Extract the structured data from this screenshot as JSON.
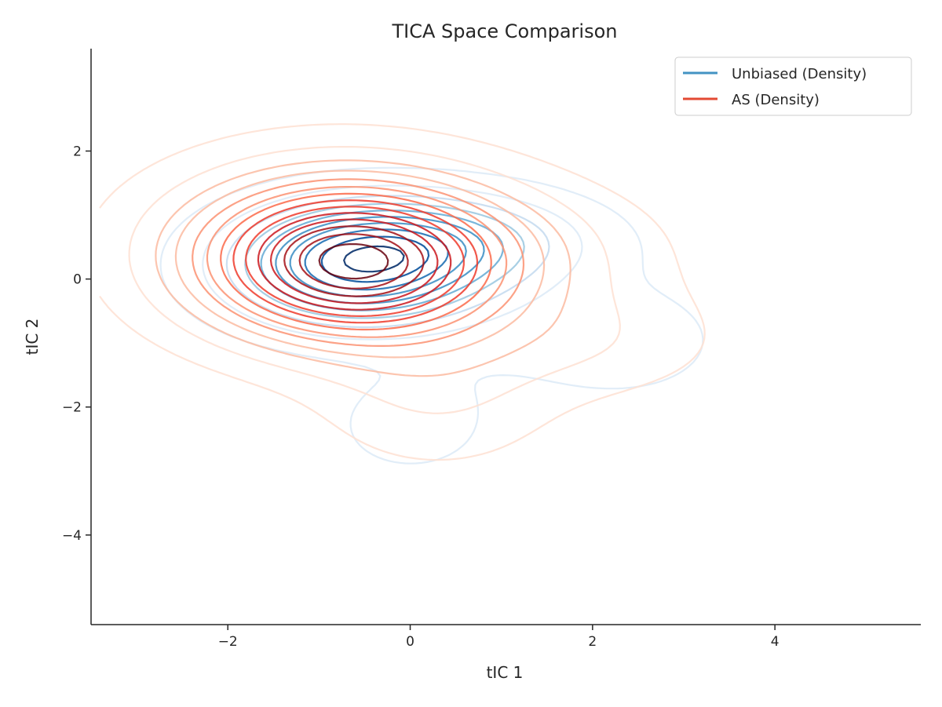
{
  "chart_data": {
    "type": "contour",
    "title": "TICA Space Comparison",
    "xlabel": "tIC 1",
    "ylabel": "tIC 2",
    "xlim": [
      -3.5,
      5.6
    ],
    "ylim": [
      -5.4,
      3.6
    ],
    "xticks": [
      -2,
      0,
      2,
      4
    ],
    "yticks": [
      -4,
      -2,
      0,
      2
    ],
    "xtick_labels": [
      "−2",
      "0",
      "2",
      "4"
    ],
    "ytick_labels": [
      "−4",
      "−2",
      "0",
      "2"
    ],
    "grid": false,
    "legend_position": "top-right",
    "series": [
      {
        "name": "Unbiased (Density)",
        "color": "#4393c3",
        "palette": [
          "#deebf7",
          "#c6dbef",
          "#9ecae1",
          "#6baed6",
          "#4292c6",
          "#2171b5",
          "#08519c",
          "#08306b"
        ],
        "components": [
          {
            "cx": -0.6,
            "cy": 0.2,
            "sx": 0.9,
            "sy": 0.6,
            "w": 1.0
          },
          {
            "cx": 0.4,
            "cy": 0.6,
            "sx": 1.0,
            "sy": 0.5,
            "w": 0.45
          },
          {
            "cx": 0.0,
            "cy": -2.3,
            "sx": 0.55,
            "sy": 0.5,
            "w": 0.12
          },
          {
            "cx": 2.4,
            "cy": -1.0,
            "sx": 0.55,
            "sy": 0.45,
            "w": 0.1
          },
          {
            "cx": 1.5,
            "cy": -0.8,
            "sx": 1.2,
            "sy": 0.8,
            "w": 0.08
          }
        ],
        "levels": 10
      },
      {
        "name": "AS (Density)",
        "color": "#e34a33",
        "palette": [
          "#fee0d2",
          "#fcbba1",
          "#fc9272",
          "#fb6a4a",
          "#ef3b2c",
          "#cb181d",
          "#a50f15",
          "#67000d"
        ],
        "components": [
          {
            "cx": -0.6,
            "cy": 0.2,
            "sx": 1.1,
            "sy": 0.8,
            "w": 1.0
          },
          {
            "cx": -0.9,
            "cy": 0.6,
            "sx": 1.3,
            "sy": 0.9,
            "w": 0.35
          },
          {
            "cx": 0.3,
            "cy": -1.8,
            "sx": 0.9,
            "sy": 0.8,
            "w": 0.15
          },
          {
            "cx": 2.0,
            "cy": -1.0,
            "sx": 1.0,
            "sy": 0.6,
            "w": 0.12
          },
          {
            "cx": 1.5,
            "cy": 0.4,
            "sx": 1.2,
            "sy": 0.8,
            "w": 0.1
          }
        ],
        "levels": 14
      }
    ]
  }
}
